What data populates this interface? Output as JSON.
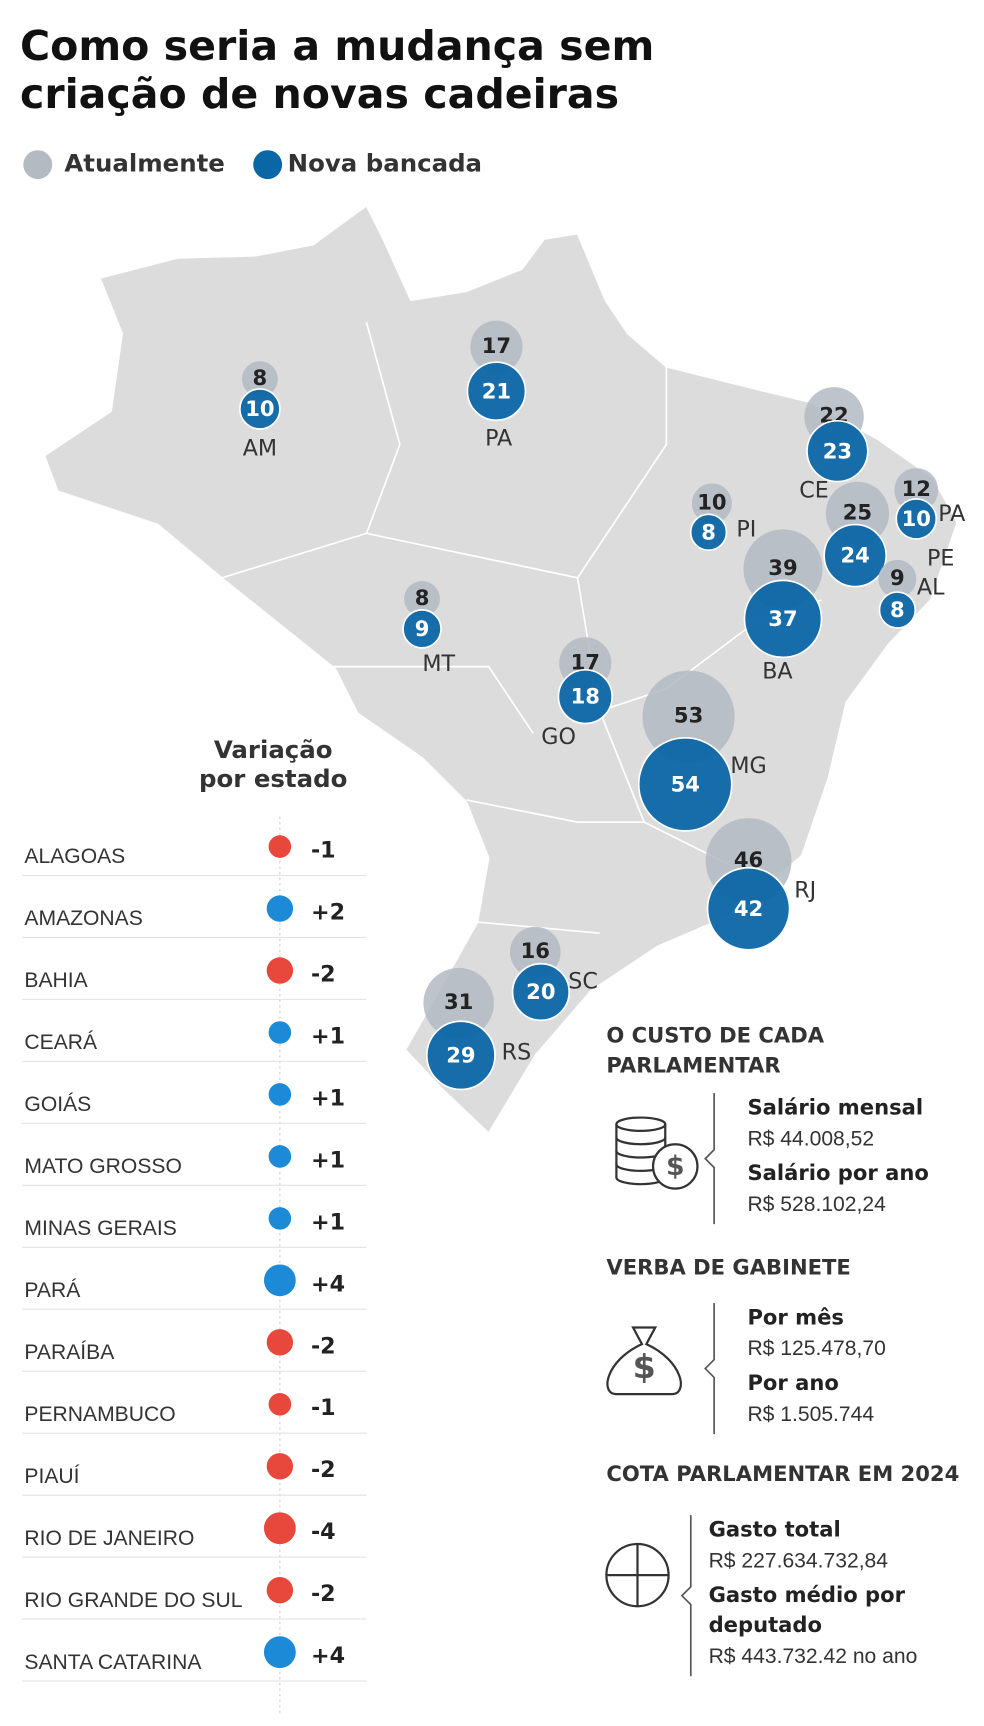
{
  "title": [
    "Como seria a mudança sem",
    "criação de novas cadeiras"
  ],
  "legend": {
    "current": "Atualmente",
    "new": "Nova bancada"
  },
  "colors": {
    "current": "#b3bac2",
    "new": "#0b66a5",
    "increase": "#1c8ad6",
    "decrease": "#e8473b"
  },
  "map_states": [
    {
      "label": "AM",
      "current": 8,
      "new": 10
    },
    {
      "label": "PA",
      "current": 17,
      "new": 21
    },
    {
      "label": "CE",
      "current": 22,
      "new": 23
    },
    {
      "label": "PI",
      "current": 10,
      "new": 8
    },
    {
      "label": "PA",
      "current": 12,
      "new": 10
    },
    {
      "label": "PE",
      "current": 25,
      "new": 24
    },
    {
      "label": "AL",
      "current": 9,
      "new": 8
    },
    {
      "label": "BA",
      "current": 39,
      "new": 37
    },
    {
      "label": "MT",
      "current": 8,
      "new": 9
    },
    {
      "label": "GO",
      "current": 17,
      "new": 18
    },
    {
      "label": "MG",
      "current": 53,
      "new": 54
    },
    {
      "label": "RJ",
      "current": 46,
      "new": 42
    },
    {
      "label": "SC",
      "current": 16,
      "new": 20
    },
    {
      "label": "RS",
      "current": 31,
      "new": 29
    }
  ],
  "variation": {
    "title": [
      "Variação",
      "por estado"
    ],
    "rows": [
      {
        "name": "ALAGOAS",
        "value": -1
      },
      {
        "name": "AMAZONAS",
        "value": 2,
        "label": "+2"
      },
      {
        "name": "BAHIA",
        "value": -2
      },
      {
        "name": "CEARÁ",
        "value": 1,
        "label": "+1"
      },
      {
        "name": "GOIÁS",
        "value": 1,
        "label": "+1"
      },
      {
        "name": "MATO GROSSO",
        "value": 1,
        "label": "+1"
      },
      {
        "name": "MINAS GERAIS",
        "value": 1,
        "label": "+1"
      },
      {
        "name": "PARÁ",
        "value": 4,
        "label": "+4"
      },
      {
        "name": "PARAÍBA",
        "value": -2
      },
      {
        "name": "PERNAMBUCO",
        "value": -1
      },
      {
        "name": "PIAUÍ",
        "value": -2
      },
      {
        "name": "RIO DE JANEIRO",
        "value": -4
      },
      {
        "name": "RIO GRANDE DO SUL",
        "value": -2
      },
      {
        "name": "SANTA CATARINA",
        "value": 4,
        "label": "+4"
      }
    ]
  },
  "sections": [
    {
      "title": [
        "O CUSTO DE CADA",
        "PARLAMENTAR"
      ],
      "items": [
        {
          "label": [
            "Salário mensal"
          ],
          "value": "R$ 44.008,52"
        },
        {
          "label": [
            "Salário por ano"
          ],
          "value": "R$ 528.102,24"
        }
      ]
    },
    {
      "title": [
        "VERBA DE GABINETE"
      ],
      "items": [
        {
          "label": [
            "Por mês"
          ],
          "value": "R$ 125.478,70"
        },
        {
          "label": [
            "Por ano"
          ],
          "value": "R$ 1.505.744"
        }
      ]
    },
    {
      "title": [
        "COTA PARLAMENTAR EM 2024"
      ],
      "items": [
        {
          "label": [
            "Gasto total"
          ],
          "value": "R$ 227.634.732,84"
        },
        {
          "label": [
            "Gasto médio por",
            "deputado"
          ],
          "value": "R$ 443.732.42 no ano"
        }
      ]
    }
  ]
}
